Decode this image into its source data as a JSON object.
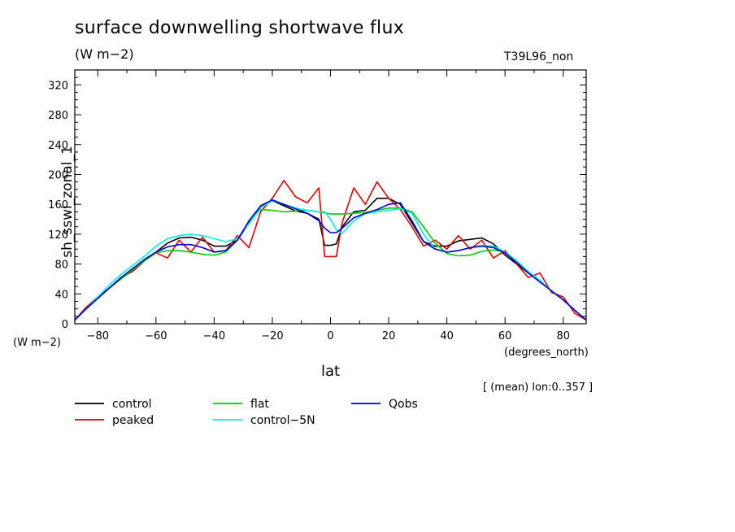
{
  "header": {
    "title": "surface downwelling shortwave flux",
    "units": "(W m−2)",
    "run_id": "T39L96_non"
  },
  "axes": {
    "y_label": "sh_sswi_zonal_1",
    "y_units": "(W m−2)",
    "x_label": "lat",
    "x_units": "(degrees_north)",
    "stats": "[ (mean) lon:0..357 ]"
  },
  "chart_data": {
    "type": "line",
    "title": "surface downwelling shortwave flux",
    "xlabel": "lat",
    "ylabel": "sh_sswi_zonal_1",
    "xlim": [
      -87.9,
      87.9
    ],
    "ylim": [
      0,
      340
    ],
    "xticks": [
      -80,
      -60,
      -40,
      -20,
      0,
      20,
      40,
      60,
      80
    ],
    "xtick_labels": [
      "−80",
      "−60",
      "−40",
      "−20",
      "0",
      "20",
      "40",
      "60",
      "80"
    ],
    "yticks": [
      0,
      40,
      80,
      120,
      160,
      200,
      240,
      280,
      320
    ],
    "ytick_labels": [
      "0",
      "40",
      "80",
      "120",
      "160",
      "200",
      "240",
      "280",
      "320"
    ],
    "grid": false,
    "legend_position": "bottom",
    "series": [
      {
        "name": "control",
        "color": "#000000",
        "x": [
          -87.9,
          -84,
          -80,
          -76,
          -72,
          -68,
          -64,
          -60,
          -56,
          -52,
          -48,
          -44,
          -40,
          -36,
          -32,
          -28,
          -24,
          -20,
          -16,
          -12,
          -8,
          -4,
          -2,
          0,
          2,
          4,
          8,
          12,
          16,
          20,
          24,
          28,
          32,
          36,
          40,
          44,
          48,
          52,
          56,
          60,
          64,
          68,
          72,
          76,
          80,
          84,
          87.9
        ],
        "y": [
          5,
          20,
          34,
          48,
          60,
          72,
          84,
          96,
          108,
          115,
          116,
          112,
          104,
          104,
          112,
          135,
          158,
          165,
          158,
          151,
          148,
          140,
          105,
          105,
          107,
          130,
          150,
          152,
          168,
          168,
          160,
          135,
          110,
          104,
          104,
          111,
          113,
          115,
          107,
          92,
          80,
          68,
          57,
          44,
          32,
          18,
          5
        ]
      },
      {
        "name": "peaked",
        "color": "#dd0000",
        "x": [
          -87.9,
          -84,
          -80,
          -76,
          -72,
          -68,
          -64,
          -60,
          -56,
          -52,
          -48,
          -44,
          -40,
          -36,
          -32,
          -28,
          -24,
          -20,
          -16,
          -12,
          -8,
          -4,
          -2,
          0,
          2,
          4,
          8,
          12,
          16,
          20,
          24,
          28,
          32,
          36,
          40,
          44,
          48,
          52,
          56,
          60,
          64,
          68,
          72,
          76,
          80,
          84,
          87.9
        ],
        "y": [
          5,
          22,
          36,
          48,
          62,
          70,
          84,
          95,
          88,
          112,
          96,
          116,
          96,
          98,
          118,
          102,
          150,
          168,
          192,
          170,
          162,
          182,
          90,
          90,
          90,
          135,
          182,
          160,
          190,
          168,
          153,
          130,
          104,
          112,
          100,
          118,
          100,
          112,
          88,
          98,
          80,
          62,
          68,
          42,
          36,
          14,
          5
        ]
      },
      {
        "name": "flat",
        "color": "#00cc00",
        "x": [
          -87.9,
          -84,
          -80,
          -76,
          -72,
          -68,
          -64,
          -60,
          -56,
          -52,
          -48,
          -44,
          -40,
          -36,
          -32,
          -28,
          -24,
          -20,
          -16,
          -12,
          -8,
          -4,
          0,
          4,
          8,
          12,
          16,
          20,
          24,
          28,
          32,
          36,
          40,
          44,
          48,
          52,
          56,
          60,
          64,
          68,
          72,
          76,
          80,
          84,
          87.9
        ],
        "y": [
          5,
          20,
          34,
          48,
          60,
          72,
          84,
          95,
          98,
          98,
          96,
          93,
          92,
          96,
          112,
          138,
          153,
          152,
          150,
          151,
          152,
          150,
          147,
          147,
          148,
          149,
          152,
          155,
          155,
          150,
          130,
          108,
          94,
          91,
          92,
          97,
          99,
          96,
          84,
          70,
          58,
          44,
          32,
          18,
          5
        ]
      },
      {
        "name": "control−5N",
        "color": "#00eeee",
        "x": [
          -87.9,
          -84,
          -80,
          -76,
          -72,
          -68,
          -64,
          -60,
          -56,
          -52,
          -48,
          -44,
          -40,
          -36,
          -32,
          -28,
          -24,
          -20,
          -16,
          -12,
          -8,
          -4,
          -2,
          0,
          2,
          4,
          8,
          12,
          16,
          20,
          24,
          28,
          32,
          36,
          40,
          44,
          48,
          52,
          56,
          60,
          64,
          68,
          72,
          76,
          80,
          84,
          87.9
        ],
        "y": [
          5,
          20,
          36,
          52,
          66,
          78,
          90,
          104,
          114,
          118,
          120,
          118,
          114,
          110,
          114,
          134,
          155,
          165,
          160,
          155,
          152,
          150,
          150,
          140,
          126,
          121,
          138,
          148,
          150,
          152,
          154,
          148,
          120,
          100,
          96,
          98,
          102,
          105,
          104,
          96,
          84,
          70,
          58,
          44,
          32,
          18,
          5
        ]
      },
      {
        "name": "Qobs",
        "color": "#0000cc",
        "x": [
          -87.9,
          -84,
          -80,
          -76,
          -72,
          -68,
          -64,
          -60,
          -56,
          -52,
          -48,
          -44,
          -40,
          -36,
          -32,
          -28,
          -24,
          -20,
          -16,
          -12,
          -8,
          -4,
          -2,
          0,
          2,
          4,
          8,
          12,
          16,
          20,
          24,
          28,
          32,
          36,
          40,
          44,
          48,
          52,
          56,
          60,
          64,
          68,
          72,
          76,
          80,
          84,
          87.9
        ],
        "y": [
          5,
          20,
          34,
          48,
          62,
          74,
          86,
          96,
          103,
          106,
          106,
          102,
          96,
          98,
          112,
          138,
          158,
          166,
          160,
          154,
          148,
          138,
          128,
          122,
          122,
          128,
          142,
          148,
          153,
          160,
          162,
          138,
          110,
          100,
          96,
          98,
          102,
          104,
          102,
          95,
          82,
          68,
          56,
          44,
          32,
          18,
          5
        ]
      }
    ]
  }
}
